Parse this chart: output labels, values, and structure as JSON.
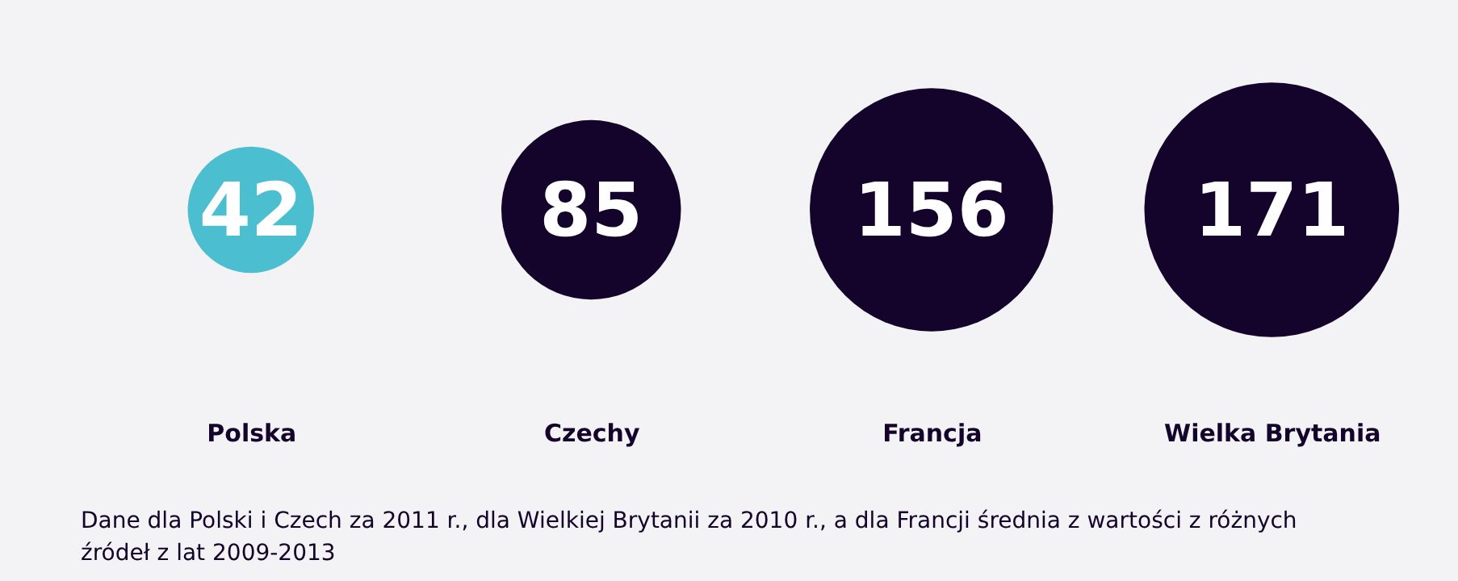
{
  "chart_data": {
    "type": "other",
    "categories": [
      "Polska",
      "Czechy",
      "Francja",
      "Wielka Brytania"
    ],
    "values": [
      42,
      85,
      156,
      171
    ],
    "colors": [
      "#4bbfcf",
      "#14042b",
      "#14042b",
      "#14042b"
    ],
    "data_labels": true,
    "annotations": [
      "Dane dla Polski i Czech za 2011 r., dla Wielkiej Brytanii za 2010 r., a dla Francji średnia z wartości z różnych źródeł z lat 2009-2013"
    ]
  }
}
